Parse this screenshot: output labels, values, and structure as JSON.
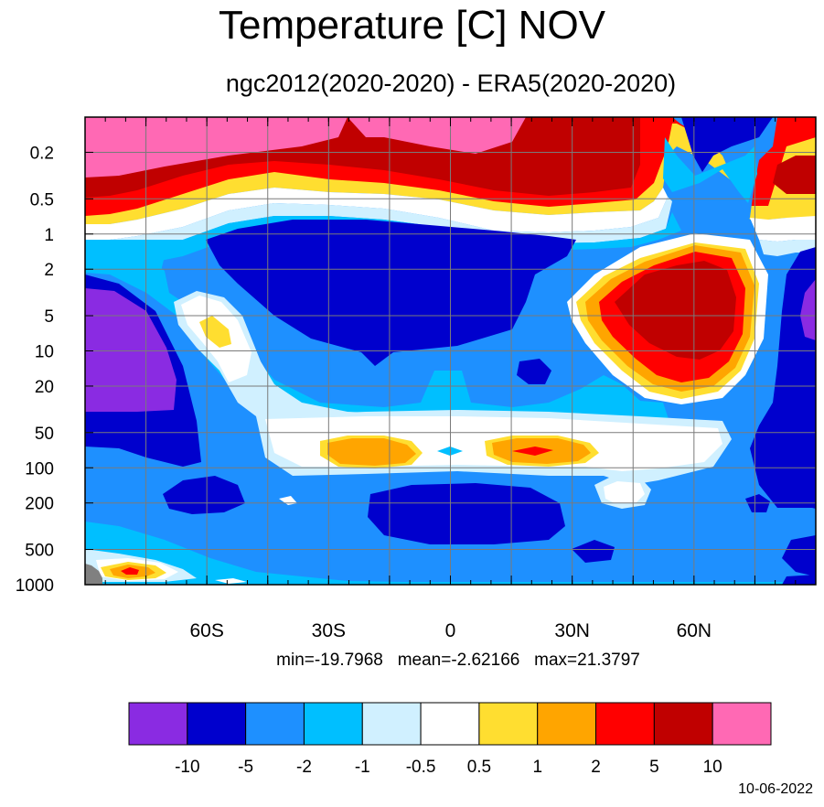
{
  "chart_data": {
    "type": "heatmap",
    "title": "Temperature [C] NOV",
    "subtitle": "ngc2012(2020-2020) - ERA5(2020-2020)",
    "y_scale": "log",
    "y_reversed": true,
    "y_ticks": [
      "0.2",
      "0.5",
      "1",
      "2",
      "5",
      "10",
      "20",
      "50",
      "100",
      "200",
      "500",
      "1000"
    ],
    "x_ticks": [
      "60S",
      "30S",
      "0",
      "30N",
      "60N"
    ],
    "x_range": [
      -90,
      90
    ],
    "y_range": [
      0.1,
      1000
    ],
    "grid": true,
    "stats_text": "min=-19.7968   mean=-2.62166   max=21.3797",
    "colorbar": {
      "colors": [
        "#8a2be2",
        "#0000cd",
        "#1e90ff",
        "#00bfff",
        "#d0f0ff",
        "#ffffff",
        "#ffde30",
        "#ffa500",
        "#ff0000",
        "#c00000",
        "#ff69b4"
      ],
      "labels": [
        "-10",
        "-5",
        "-2",
        "-1",
        "-0.5",
        "0.5",
        "1",
        "2",
        "5",
        "10"
      ]
    }
  },
  "date": "10-06-2022"
}
